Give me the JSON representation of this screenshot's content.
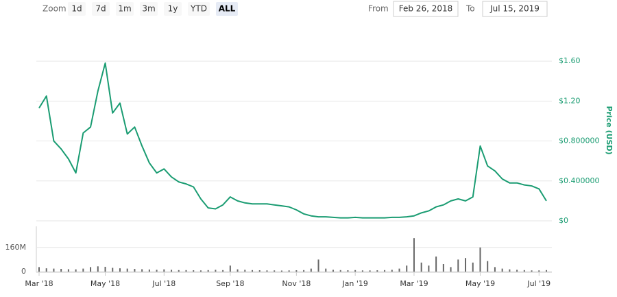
{
  "range_selector": {
    "zoom_label": "Zoom",
    "buttons": [
      "1d",
      "7d",
      "1m",
      "3m",
      "1y",
      "YTD",
      "ALL"
    ],
    "selected": 6,
    "from_label": "From",
    "from": "Feb 26, 2018",
    "to_label": "To",
    "to": "Jul 15, 2019"
  },
  "chart_data": {
    "type": "line",
    "ylabel": "Price (USD)",
    "categories": [
      "Mar '18",
      null,
      null,
      null,
      null,
      null,
      null,
      null,
      null,
      "May '18",
      null,
      null,
      null,
      null,
      null,
      null,
      null,
      "Jul '18",
      null,
      null,
      null,
      null,
      null,
      null,
      null,
      null,
      "Sep '18",
      null,
      null,
      null,
      null,
      null,
      null,
      null,
      null,
      "Nov '18",
      null,
      null,
      null,
      null,
      null,
      null,
      null,
      "Jan '19",
      null,
      null,
      null,
      null,
      null,
      null,
      null,
      "Mar '19",
      null,
      null,
      null,
      null,
      null,
      null,
      null,
      null,
      "May '19",
      null,
      null,
      null,
      null,
      null,
      null,
      null,
      "Jul '19",
      null
    ],
    "series": [
      {
        "color": "#1a9c72",
        "values": [
          1.13,
          1.25,
          0.8,
          0.72,
          0.62,
          0.48,
          0.88,
          0.94,
          1.3,
          1.58,
          1.08,
          1.18,
          0.87,
          0.94,
          0.75,
          0.58,
          0.48,
          0.52,
          0.44,
          0.39,
          0.37,
          0.34,
          0.22,
          0.13,
          0.12,
          0.16,
          0.24,
          0.2,
          0.18,
          0.17,
          0.17,
          0.17,
          0.16,
          0.15,
          0.14,
          0.11,
          0.07,
          0.05,
          0.04,
          0.04,
          0.035,
          0.03,
          0.03,
          0.035,
          0.03,
          0.03,
          0.03,
          0.03,
          0.035,
          0.035,
          0.04,
          0.05,
          0.08,
          0.1,
          0.14,
          0.16,
          0.2,
          0.22,
          0.2,
          0.24,
          0.75,
          0.55,
          0.5,
          0.42,
          0.38,
          0.38,
          0.36,
          0.35,
          0.32,
          0.2
        ]
      },
      {
        "color": "#666666",
        "axis": "y2",
        "values": [
          30000000,
          22000000,
          20000000,
          18000000,
          16000000,
          15000000,
          20000000,
          30000000,
          35000000,
          32000000,
          25000000,
          22000000,
          20000000,
          18000000,
          16000000,
          14000000,
          12000000,
          15000000,
          12000000,
          10000000,
          10000000,
          9000000,
          8000000,
          10000000,
          12000000,
          10000000,
          40000000,
          15000000,
          12000000,
          10000000,
          9000000,
          8000000,
          8000000,
          7000000,
          8000000,
          9000000,
          10000000,
          20000000,
          80000000,
          20000000,
          12000000,
          10000000,
          9000000,
          10000000,
          8000000,
          8000000,
          9000000,
          10000000,
          12000000,
          20000000,
          40000000,
          222000000,
          60000000,
          40000000,
          100000000,
          50000000,
          30000000,
          80000000,
          90000000,
          60000000,
          160000000,
          70000000,
          30000000,
          20000000,
          15000000,
          12000000,
          10000000,
          8000000,
          8000000,
          10000000
        ]
      }
    ],
    "ylim": [
      0,
      1.8
    ],
    "yticks": [
      {
        "value": 0,
        "label": "$0"
      },
      {
        "value": 0.4,
        "label": "$0.400000"
      },
      {
        "value": 0.8,
        "label": "$0.800000"
      },
      {
        "value": 1.2,
        "label": "$1.20"
      },
      {
        "value": 1.6,
        "label": "$1.60"
      }
    ],
    "y2lim": [
      0,
      300000000
    ],
    "y2ticks": [
      0,
      {
        "value": 160000000,
        "label": "160M"
      }
    ],
    "grid": true
  }
}
